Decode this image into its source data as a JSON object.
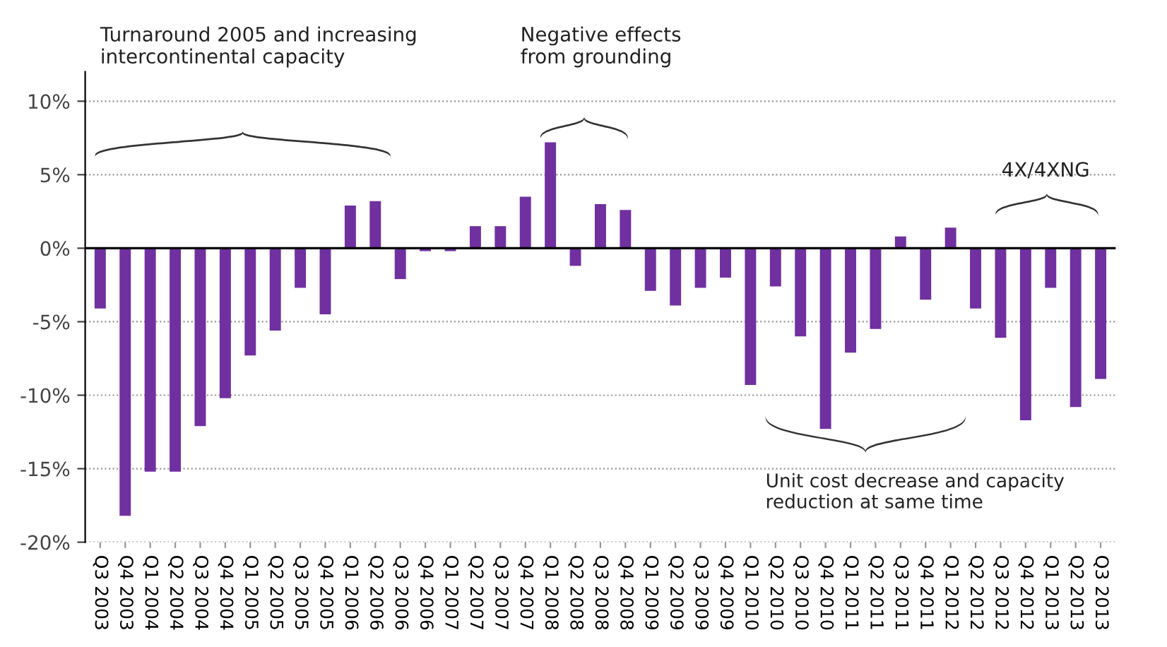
{
  "chart_data": {
    "type": "bar",
    "categories": [
      "Q3 2003",
      "Q4 2003",
      "Q1 2004",
      "Q2 2004",
      "Q3 2004",
      "Q4 2004",
      "Q1 2005",
      "Q2 2005",
      "Q3 2005",
      "Q4 2005",
      "Q1 2006",
      "Q2 2006",
      "Q3 2006",
      "Q4 2006",
      "Q1 2007",
      "Q2 2007",
      "Q3 2007",
      "Q4 2007",
      "Q1 2008",
      "Q2 2008",
      "Q3 2008",
      "Q4 2008",
      "Q1 2009",
      "Q2 2009",
      "Q3 2009",
      "Q4 2009",
      "Q1 2010",
      "Q2 2010",
      "Q3 2010",
      "Q4 2010",
      "Q1 2011",
      "Q2 2011",
      "Q3 2011",
      "Q4 2011",
      "Q1 2012",
      "Q2 2012",
      "Q3 2012",
      "Q4 2012",
      "Q1 2013",
      "Q2 2013",
      "Q3 2013"
    ],
    "values": [
      -4.1,
      -18.2,
      -15.2,
      -15.2,
      -12.1,
      -10.2,
      -7.3,
      -5.6,
      -2.7,
      -4.5,
      2.9,
      3.2,
      -2.1,
      -0.2,
      -0.2,
      1.5,
      1.5,
      3.5,
      7.2,
      -1.2,
      3.0,
      2.6,
      -2.9,
      -3.9,
      -2.7,
      -2.0,
      -9.3,
      -2.6,
      -6.0,
      -12.3,
      -7.1,
      -5.5,
      0.8,
      -3.5,
      1.4,
      -4.1,
      -6.1,
      -11.7,
      -2.7,
      -10.8,
      -8.9
    ],
    "color": "#7030a0",
    "ylim": [
      -20,
      12
    ],
    "yticks": [
      {
        "value": -20,
        "label": "-20%"
      },
      {
        "value": -15,
        "label": "-15%"
      },
      {
        "value": -10,
        "label": "-10%"
      },
      {
        "value": -5,
        "label": "-5%"
      },
      {
        "value": 0,
        "label": "0%"
      },
      {
        "value": 5,
        "label": "5%"
      },
      {
        "value": 10,
        "label": "10%"
      }
    ],
    "grid": "y",
    "annotations": [
      "Turnaround 2005 and increasing intercontinental capacity",
      "Negative effects from grounding",
      "4X/4XNG",
      "Unit cost decrease and capacity reduction at same time"
    ]
  }
}
